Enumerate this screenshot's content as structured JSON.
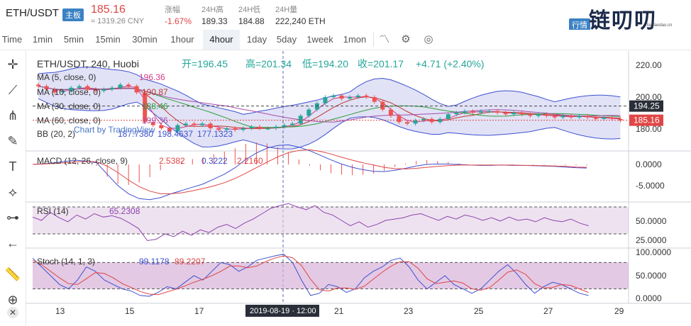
{
  "header": {
    "pair": "ETH/USDT",
    "badge": "主板",
    "price": "185.16",
    "price_cny": "≈ 1319.26 CNY",
    "stats": [
      {
        "label": "涨幅",
        "value": "-1.67%",
        "color": "#e04646"
      },
      {
        "label": "24H高",
        "value": "189.33",
        "color": "#333333"
      },
      {
        "label": "24H低",
        "value": "184.88",
        "color": "#333333"
      },
      {
        "label": "24H量",
        "value": "222,240 ETH",
        "color": "#333333"
      }
    ]
  },
  "logo": {
    "text": "链叨叨",
    "sub": "lianlaodao.cn",
    "tag": "行情"
  },
  "timeframes": [
    "Time",
    "1min",
    "5min",
    "15min",
    "30min",
    "1hour",
    "4hour",
    "1day",
    "5day",
    "1week",
    "1mon"
  ],
  "active_timeframe": "4hour",
  "tf_icons": [
    "chart-type-icon",
    "settings-icon",
    "snapshot-icon"
  ],
  "tools": [
    "crosshair-icon",
    "trend-line-icon",
    "fib-icon",
    "brush-icon",
    "text-icon",
    "pattern-icon",
    "measure-icon",
    "back-arrow-icon",
    "ruler-icon",
    "zoom-icon",
    "close-icon"
  ],
  "colors": {
    "up": "#26a69a",
    "down": "#ef5350",
    "bb": "#3f51d0",
    "bbfill": "#c9cbee"
  },
  "chart_data": [
    {
      "type": "candlestick",
      "title": "ETH/USDT, 240, Huobi",
      "ohlc_labels": {
        "open": "开=196.45",
        "high": "高=201.34",
        "low": "低=194.20",
        "close": "收=201.17",
        "change": "+4.71 (+2.40%)"
      },
      "indicators": [
        {
          "name": "MA (5, close, 0)",
          "value": "196.36",
          "color": "#d63c87"
        },
        {
          "name": "MA (10, close, 0)",
          "value": "190.87",
          "color": "#c0392b"
        },
        {
          "name": "MA (30, close, 0)",
          "value": "188.46",
          "color": "#2e9d3a"
        },
        {
          "name": "MA (60, close, 0)",
          "value": "199.36",
          "color": "#a64ca6"
        },
        {
          "name": "BB (20, 2)",
          "values": [
            "187.7380",
            "198.4637",
            "177.1323"
          ],
          "color": "#3f51d0"
        }
      ],
      "watermark": "Chart by TradingView",
      "y_ticks": [
        "220.00",
        "200.00",
        "180.00"
      ],
      "price_labels": [
        {
          "value": "194.25",
          "color": "#333333"
        },
        {
          "value": "185.16",
          "color": "#e04646"
        }
      ],
      "close": [
        207,
        205,
        203,
        204,
        206,
        207,
        205,
        204,
        205,
        206,
        208,
        207,
        203,
        184,
        182,
        180,
        178,
        182,
        183,
        182,
        183,
        180,
        179,
        180,
        179,
        180,
        181,
        180,
        180,
        181,
        182,
        183,
        188,
        192,
        196,
        200,
        201,
        199,
        200,
        201,
        200,
        197,
        192,
        188,
        184,
        183,
        185,
        186,
        184,
        186,
        189,
        190,
        191,
        190,
        191,
        191,
        190,
        189,
        190,
        189,
        188,
        189,
        188,
        187,
        188,
        187,
        188,
        187,
        186,
        187,
        186,
        185
      ]
    },
    {
      "type": "line",
      "title": "MACD (12, 26, close, 9)",
      "values": [
        "2.5382",
        "0.3222",
        "2.2160"
      ],
      "y_ticks": [
        "0.0000",
        "-5.0000"
      ],
      "macd": [
        0,
        0.2,
        0.5,
        0.9,
        1.3,
        1.0,
        0.5,
        -3,
        -6.5,
        -9,
        -10.5,
        -10.8,
        -10.2,
        -9,
        -8,
        -7,
        -6,
        -4.5,
        -3,
        -1,
        1.5,
        3.5,
        5,
        5.8,
        6,
        5.3,
        4.2,
        2.8,
        1.4,
        0.1,
        -0.9,
        -1.6,
        -2.1,
        -2.2,
        -1.8,
        -1.2,
        -0.5,
        0,
        0.1,
        0.1,
        0,
        -0.2,
        -0.3,
        -0.3,
        -0.2,
        -0.3,
        -0.3,
        -0.4,
        -0.5,
        -0.6,
        -0.8,
        -1.0,
        -1.1
      ],
      "signal": [
        0,
        0.1,
        0.3,
        0.5,
        0.8,
        0.9,
        0.8,
        -0.5,
        -2.5,
        -4.8,
        -6.8,
        -8.2,
        -9.0,
        -9.0,
        -8.7,
        -8.1,
        -7.4,
        -6.6,
        -5.6,
        -4.3,
        -2.7,
        -1.0,
        0.7,
        2.3,
        3.6,
        4.3,
        4.5,
        4.0,
        3.2,
        2.2,
        1.3,
        0.5,
        -0.2,
        -0.9,
        -1.3,
        -1.4,
        -1.2,
        -0.9,
        -0.6,
        -0.4,
        -0.2,
        -0.2,
        -0.2,
        -0.2,
        -0.2,
        -0.2,
        -0.3,
        -0.3,
        -0.4,
        -0.5,
        -0.6,
        -0.8,
        -0.9
      ]
    },
    {
      "type": "line",
      "title": "RSI (14)",
      "value": "65.2308",
      "y_ticks": [
        "50.0000",
        "25.0000"
      ],
      "values": [
        55,
        50,
        62,
        54,
        48,
        58,
        52,
        60,
        55,
        57,
        53,
        46,
        38,
        20,
        22,
        30,
        26,
        34,
        28,
        36,
        32,
        40,
        44,
        38,
        46,
        52,
        60,
        68,
        72,
        75,
        70,
        66,
        72,
        62,
        58,
        50,
        42,
        48,
        40,
        44,
        50,
        52,
        54,
        58,
        60,
        55,
        50,
        56,
        52,
        58,
        55,
        50,
        54,
        49,
        55,
        50,
        52,
        48,
        54,
        50,
        48,
        52,
        46,
        42
      ]
    },
    {
      "type": "line",
      "title": "Stoch (14, 1, 3)",
      "values": [
        "99.1178",
        "89.2207"
      ],
      "y_ticks": [
        "100.0000",
        "50.0000",
        "0.0000"
      ],
      "k": [
        90,
        70,
        50,
        30,
        20,
        40,
        70,
        60,
        40,
        30,
        20,
        15,
        5,
        3,
        12,
        25,
        20,
        35,
        50,
        40,
        60,
        80,
        75,
        60,
        70,
        85,
        90,
        95,
        99,
        80,
        40,
        5,
        10,
        30,
        25,
        12,
        20,
        45,
        60,
        70,
        85,
        90,
        70,
        40,
        20,
        35,
        50,
        30,
        20,
        10,
        20,
        40,
        60,
        75,
        55,
        30,
        10,
        25,
        35,
        30,
        20,
        10,
        5
      ],
      "d": [
        85,
        75,
        60,
        45,
        32,
        30,
        43,
        57,
        55,
        45,
        32,
        23,
        14,
        8,
        7,
        13,
        19,
        27,
        35,
        42,
        50,
        60,
        72,
        72,
        68,
        72,
        82,
        90,
        95,
        91,
        73,
        42,
        18,
        15,
        22,
        22,
        19,
        26,
        42,
        58,
        72,
        82,
        82,
        67,
        43,
        32,
        35,
        38,
        33,
        20,
        17,
        23,
        40,
        58,
        63,
        53,
        32,
        22,
        23,
        30,
        28,
        20,
        12
      ]
    }
  ],
  "x_axis": {
    "ticks": [
      "13",
      "15",
      "17",
      "21",
      "23",
      "25",
      "27",
      "29"
    ],
    "cursor_label": "2019-08-19 · 12:00"
  }
}
